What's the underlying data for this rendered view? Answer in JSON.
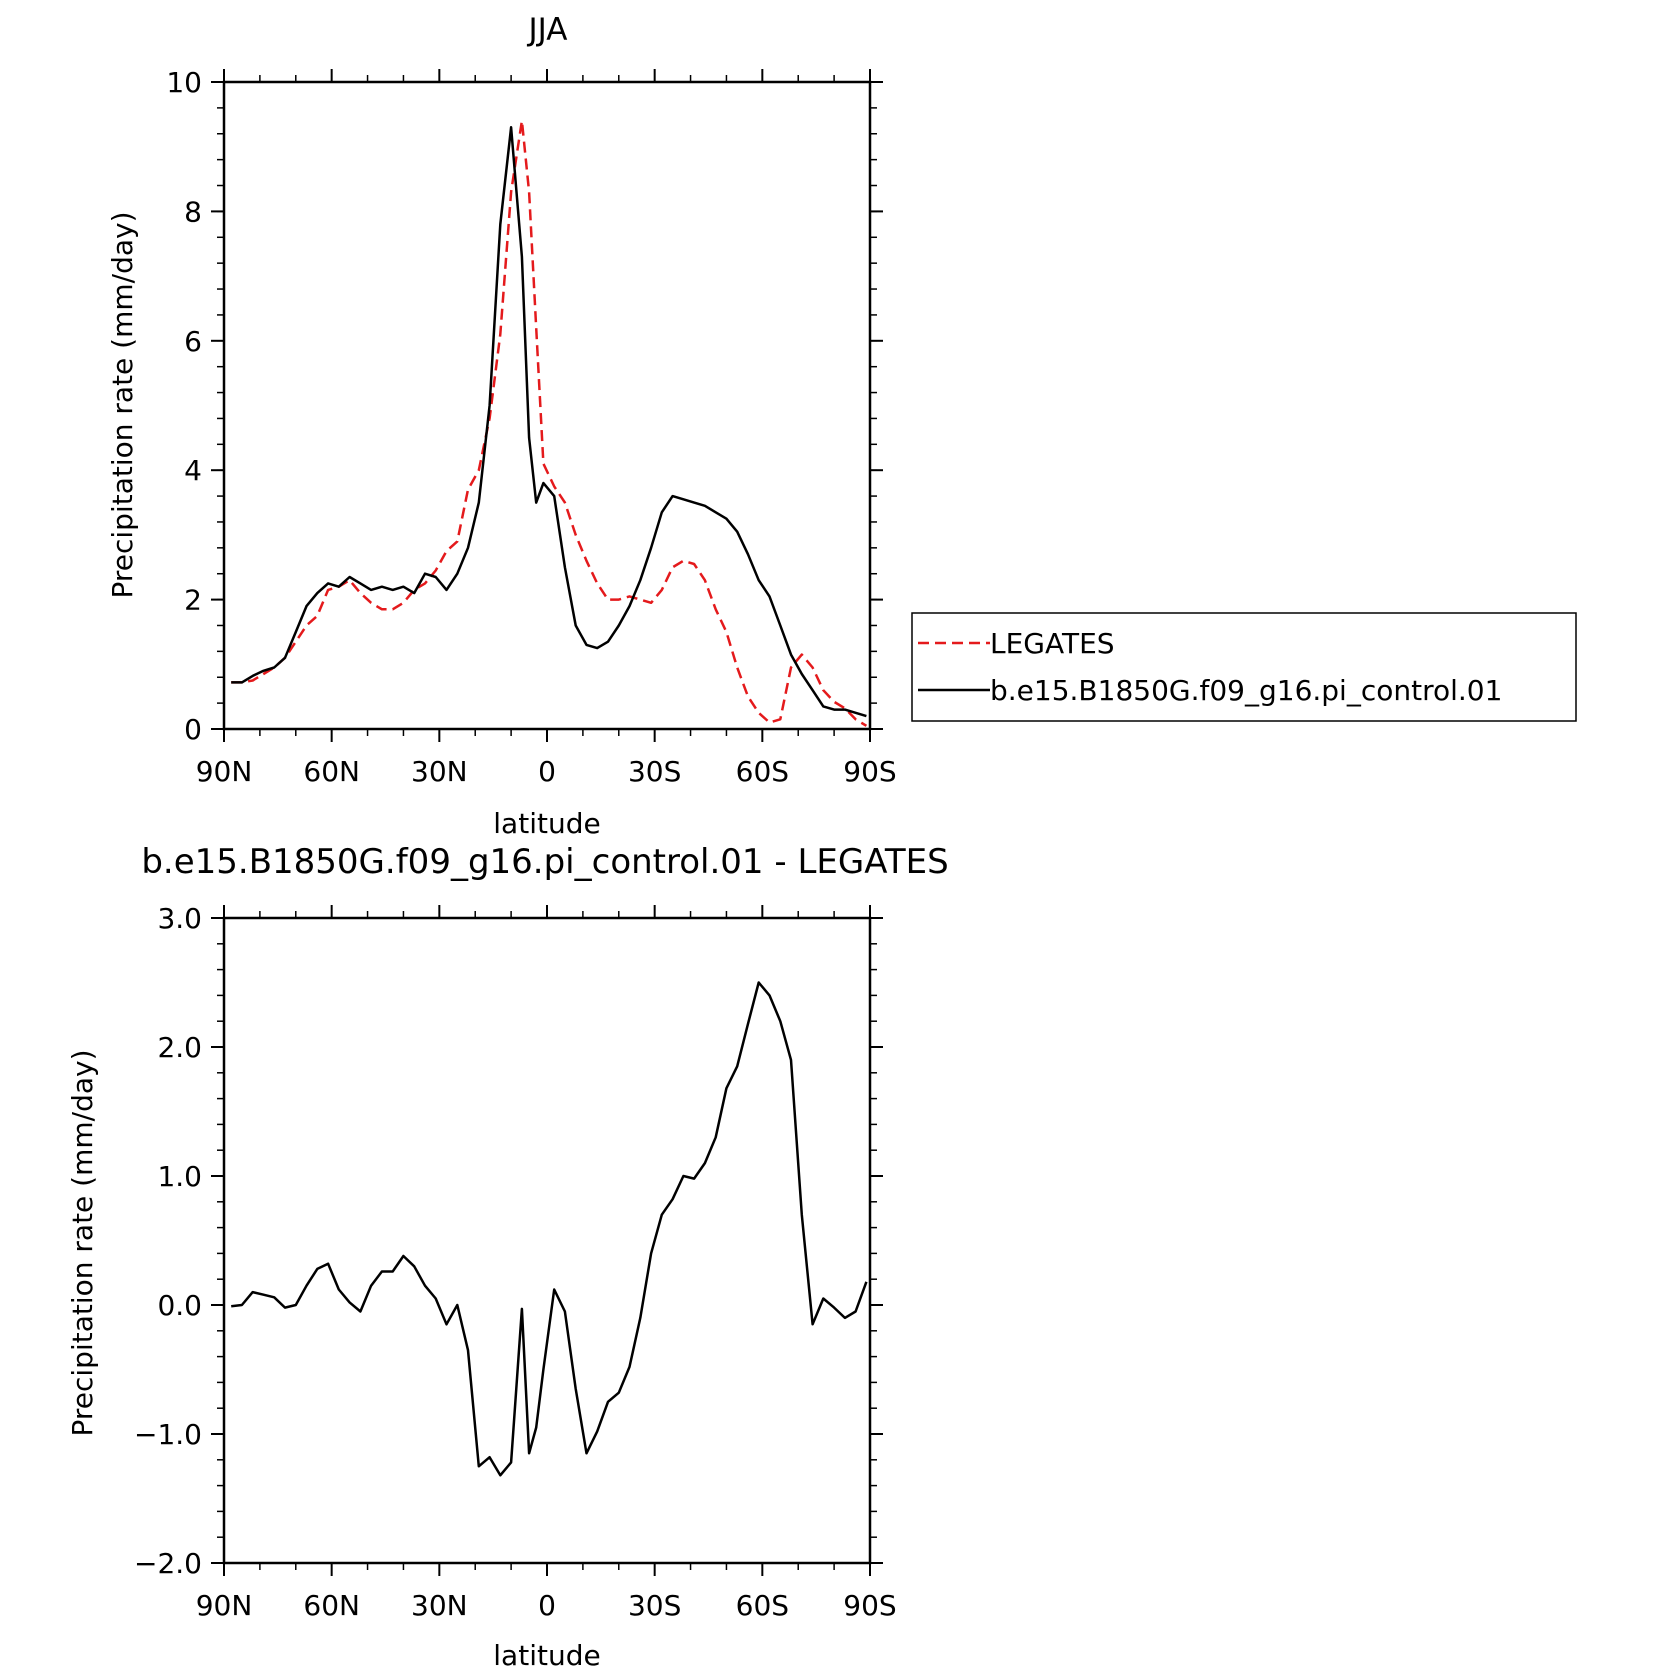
{
  "chart_data": [
    {
      "type": "line",
      "title": "JJA",
      "xlabel": "latitude",
      "ylabel": "Precipitation rate (mm/day)",
      "xlim": [
        90,
        -90
      ],
      "ylim": [
        0,
        10
      ],
      "x_ticks": [
        90,
        60,
        30,
        0,
        -30,
        -60,
        -90
      ],
      "x_tick_labels": [
        "90N",
        "60N",
        "30N",
        "0",
        "30S",
        "60S",
        "90S"
      ],
      "y_ticks": [
        0,
        2,
        4,
        6,
        8,
        10
      ],
      "y_tick_labels": [
        "0",
        "2",
        "4",
        "6",
        "8",
        "10"
      ],
      "legend_position": "right",
      "series": [
        {
          "name": "LEGATES",
          "color": "#e41a1c",
          "dash": "dashed",
          "x": [
            88,
            85,
            82,
            79,
            76,
            73,
            70,
            67,
            64,
            61,
            58,
            55,
            52,
            49,
            46,
            43,
            40,
            37,
            34,
            31,
            28,
            25,
            22,
            19,
            16,
            13,
            10,
            7,
            5,
            3,
            1,
            -2,
            -5,
            -8,
            -11,
            -14,
            -17,
            -20,
            -23,
            -26,
            -29,
            -32,
            -35,
            -38,
            -41,
            -44,
            -47,
            -50,
            -53,
            -56,
            -59,
            -62,
            -65,
            -68,
            -71,
            -74,
            -77,
            -80,
            -83,
            -86,
            -89
          ],
          "y": [
            0.72,
            0.72,
            0.75,
            0.85,
            0.95,
            1.1,
            1.35,
            1.6,
            1.75,
            2.15,
            2.2,
            2.3,
            2.1,
            1.95,
            1.85,
            1.85,
            1.95,
            2.15,
            2.25,
            2.45,
            2.75,
            2.9,
            3.7,
            4.0,
            4.8,
            6.1,
            8.3,
            9.4,
            8.3,
            6.2,
            4.1,
            3.75,
            3.5,
            3.0,
            2.6,
            2.25,
            2.0,
            2.0,
            2.05,
            2.0,
            1.95,
            2.15,
            2.5,
            2.6,
            2.55,
            2.3,
            1.85,
            1.5,
            0.95,
            0.5,
            0.25,
            0.1,
            0.15,
            0.95,
            1.15,
            0.95,
            0.6,
            0.42,
            0.32,
            0.15,
            0.05
          ]
        },
        {
          "name": "b.e15.B1850G.f09_g16.pi_control.01",
          "color": "#000000",
          "dash": "solid",
          "x": [
            88,
            85,
            82,
            79,
            76,
            73,
            70,
            67,
            64,
            61,
            58,
            55,
            52,
            49,
            46,
            43,
            40,
            37,
            34,
            31,
            28,
            25,
            22,
            19,
            16,
            13,
            10,
            7,
            5,
            3,
            1,
            -2,
            -5,
            -8,
            -11,
            -14,
            -17,
            -20,
            -23,
            -26,
            -29,
            -32,
            -35,
            -38,
            -41,
            -44,
            -47,
            -50,
            -53,
            -56,
            -59,
            -62,
            -65,
            -68,
            -71,
            -74,
            -77,
            -80,
            -83,
            -86,
            -89
          ],
          "y": [
            0.72,
            0.72,
            0.82,
            0.9,
            0.95,
            1.1,
            1.5,
            1.9,
            2.1,
            2.25,
            2.2,
            2.35,
            2.25,
            2.15,
            2.2,
            2.15,
            2.2,
            2.1,
            2.4,
            2.35,
            2.15,
            2.4,
            2.8,
            3.5,
            5.0,
            7.8,
            9.3,
            7.3,
            4.5,
            3.5,
            3.8,
            3.6,
            2.5,
            1.6,
            1.3,
            1.25,
            1.35,
            1.6,
            1.9,
            2.3,
            2.8,
            3.35,
            3.6,
            3.55,
            3.5,
            3.45,
            3.35,
            3.25,
            3.05,
            2.7,
            2.3,
            2.05,
            1.6,
            1.15,
            0.85,
            0.6,
            0.35,
            0.3,
            0.3,
            0.25,
            0.2
          ]
        }
      ]
    },
    {
      "type": "line",
      "title": "b.e15.B1850G.f09_g16.pi_control.01 - LEGATES",
      "xlabel": "latitude",
      "ylabel": "Precipitation rate (mm/day)",
      "xlim": [
        90,
        -90
      ],
      "ylim": [
        -2.0,
        3.0
      ],
      "x_ticks": [
        90,
        60,
        30,
        0,
        -30,
        -60,
        -90
      ],
      "x_tick_labels": [
        "90N",
        "60N",
        "30N",
        "0",
        "30S",
        "60S",
        "90S"
      ],
      "y_ticks": [
        -2.0,
        -1.0,
        0.0,
        1.0,
        2.0,
        3.0
      ],
      "y_tick_labels": [
        "-2.0",
        "-1.0",
        "0.0",
        "1.0",
        "2.0",
        "3.0"
      ],
      "series": [
        {
          "color": "#000000",
          "dash": "solid",
          "x": [
            88,
            85,
            82,
            79,
            76,
            73,
            70,
            67,
            64,
            61,
            58,
            55,
            52,
            49,
            46,
            43,
            40,
            37,
            34,
            31,
            28,
            25,
            22,
            19,
            16,
            13,
            10,
            7,
            5,
            3,
            1,
            -2,
            -5,
            -8,
            -11,
            -14,
            -17,
            -20,
            -23,
            -26,
            -29,
            -32,
            -35,
            -38,
            -41,
            -44,
            -47,
            -50,
            -53,
            -56,
            -59,
            -62,
            -65,
            -68,
            -71,
            -74,
            -77,
            -80,
            -83,
            -86,
            -89
          ],
          "y": [
            -0.01,
            0.0,
            0.1,
            0.08,
            0.06,
            -0.02,
            0.0,
            0.15,
            0.28,
            0.32,
            0.12,
            0.02,
            -0.05,
            0.15,
            0.26,
            0.26,
            0.38,
            0.3,
            0.15,
            0.05,
            -0.15,
            0.0,
            -0.35,
            -1.25,
            -1.18,
            -1.32,
            -1.22,
            -0.03,
            -1.15,
            -0.95,
            -0.5,
            0.12,
            -0.05,
            -0.65,
            -1.15,
            -0.98,
            -0.75,
            -0.68,
            -0.48,
            -0.1,
            0.4,
            0.7,
            0.82,
            1.0,
            0.98,
            1.1,
            1.3,
            1.68,
            1.85,
            2.18,
            2.5,
            2.4,
            2.2,
            1.9,
            0.7,
            -0.15,
            0.05,
            -0.02,
            -0.1,
            -0.05,
            0.18
          ]
        }
      ]
    }
  ]
}
